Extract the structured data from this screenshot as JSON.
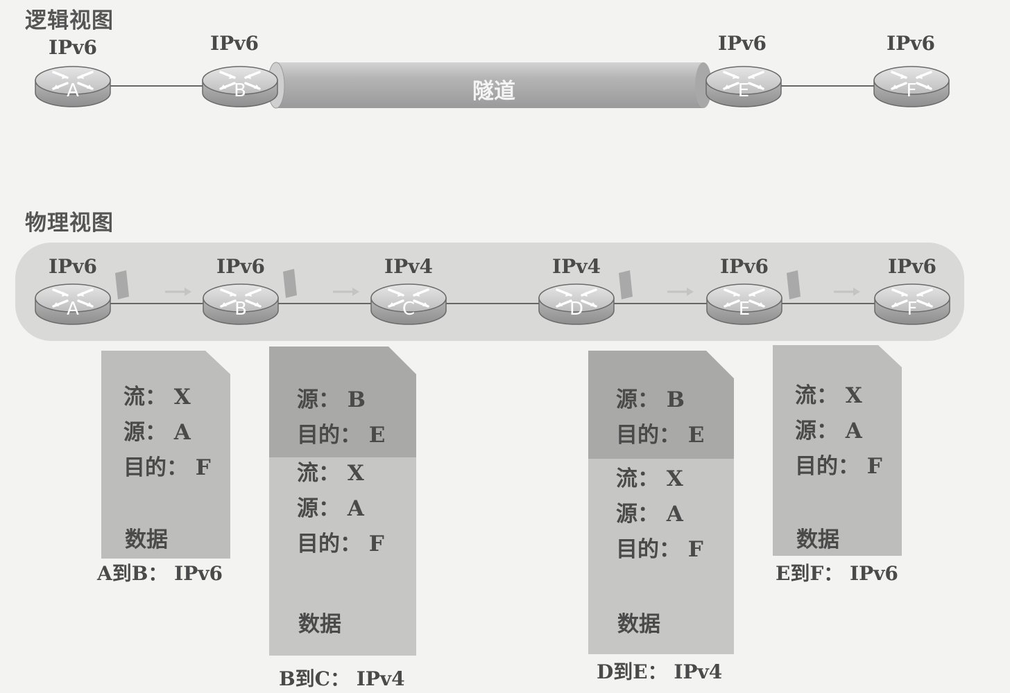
{
  "logical_view": {
    "title": "逻辑视图",
    "routers": [
      {
        "id": "A",
        "version": "IPv6"
      },
      {
        "id": "B",
        "version": "IPv6"
      },
      {
        "id": "E",
        "version": "IPv6"
      },
      {
        "id": "F",
        "version": "IPv6"
      }
    ],
    "tunnel_label": "隧道"
  },
  "physical_view": {
    "title": "物理视图",
    "routers": [
      {
        "id": "A",
        "version": "IPv6"
      },
      {
        "id": "B",
        "version": "IPv6"
      },
      {
        "id": "C",
        "version": "IPv4"
      },
      {
        "id": "D",
        "version": "IPv4"
      },
      {
        "id": "E",
        "version": "IPv6"
      },
      {
        "id": "F",
        "version": "IPv6"
      }
    ]
  },
  "packets": [
    {
      "outer_header": [],
      "inner_header": [
        "流： X",
        "源： A",
        "目的： F"
      ],
      "payload": "数据",
      "caption": "A到B： IPv6"
    },
    {
      "outer_header": [
        "源： B",
        "目的： E"
      ],
      "inner_header": [
        "流： X",
        "源： A",
        "目的： F"
      ],
      "payload": "数据",
      "caption": "B到C： IPv4"
    },
    {
      "outer_header": [
        "源： B",
        "目的： E"
      ],
      "inner_header": [
        "流： X",
        "源： A",
        "目的： F"
      ],
      "payload": "数据",
      "caption": "D到E： IPv4"
    },
    {
      "outer_header": [],
      "inner_header": [
        "流： X",
        "源： A",
        "目的： F"
      ],
      "payload": "数据",
      "caption": "E到F： IPv6"
    }
  ]
}
